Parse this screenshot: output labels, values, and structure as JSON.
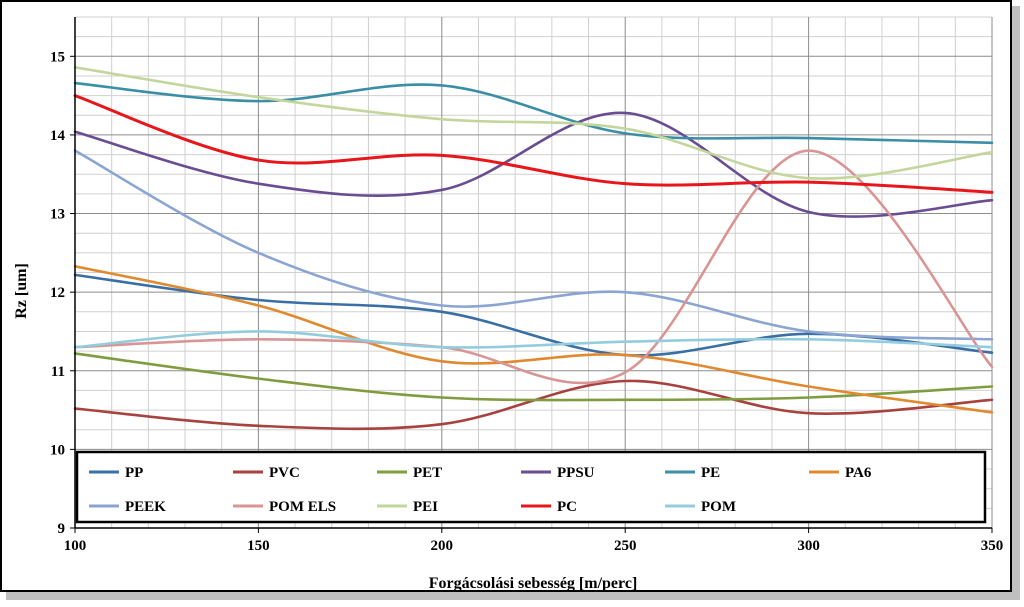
{
  "chart_data": {
    "type": "line",
    "xlabel": "Forgácsolási sebesség [m/perc]",
    "ylabel": "Rz [um]",
    "xlim": [
      100,
      350
    ],
    "ylim": [
      9,
      15.5
    ],
    "x_ticks": [
      100,
      150,
      200,
      250,
      300,
      350
    ],
    "y_ticks": [
      9,
      10,
      11,
      12,
      13,
      14,
      15
    ],
    "minor_x_step": 10,
    "minor_y_step": 0.25,
    "grid": true,
    "legend_position": "bottom-inside",
    "x": [
      100,
      150,
      200,
      250,
      300,
      350
    ],
    "series": [
      {
        "name": "PP",
        "color": "#3a6fa5",
        "values": [
          12.22,
          11.9,
          11.75,
          11.2,
          11.47,
          11.23
        ]
      },
      {
        "name": "PVC",
        "color": "#a8423f",
        "values": [
          10.52,
          10.3,
          10.32,
          10.87,
          10.46,
          10.63
        ]
      },
      {
        "name": "PET",
        "color": "#7f9c3e",
        "values": [
          11.22,
          10.9,
          10.66,
          10.63,
          10.66,
          10.8
        ]
      },
      {
        "name": "PPSU",
        "color": "#6a4c93",
        "values": [
          14.04,
          13.38,
          13.3,
          14.28,
          13.02,
          13.17
        ]
      },
      {
        "name": "PE",
        "color": "#3a8ea5",
        "values": [
          14.66,
          14.43,
          14.63,
          14.02,
          13.96,
          13.9
        ]
      },
      {
        "name": "PA6",
        "color": "#e0892f",
        "values": [
          12.33,
          11.83,
          11.12,
          11.2,
          10.8,
          10.47
        ]
      },
      {
        "name": "PEEK",
        "color": "#8aa5d3",
        "values": [
          13.8,
          12.5,
          11.83,
          12.0,
          11.5,
          11.4
        ]
      },
      {
        "name": "POM ELS",
        "color": "#d99594",
        "values": [
          11.3,
          11.4,
          11.3,
          10.98,
          13.8,
          11.05
        ]
      },
      {
        "name": "PEI",
        "color": "#c3d69b",
        "values": [
          14.86,
          14.48,
          14.2,
          14.08,
          13.45,
          13.78
        ]
      },
      {
        "name": "PC",
        "color": "#e8151a",
        "values": [
          14.5,
          13.68,
          13.74,
          13.38,
          13.4,
          13.27
        ]
      },
      {
        "name": "POM",
        "color": "#93cddd",
        "values": [
          11.3,
          11.5,
          11.3,
          11.37,
          11.4,
          11.3
        ]
      }
    ],
    "legend_columns": 6
  }
}
